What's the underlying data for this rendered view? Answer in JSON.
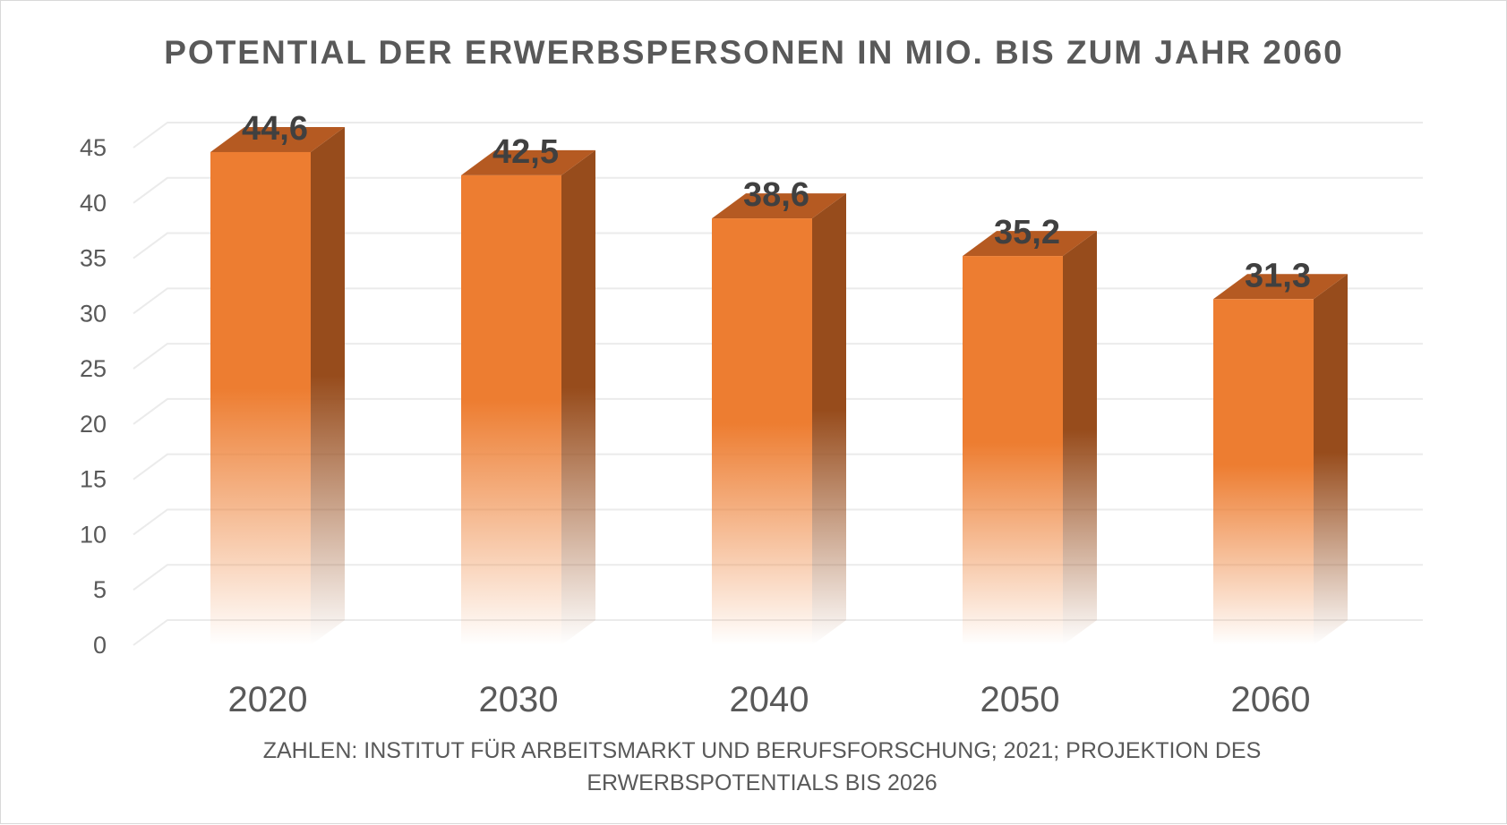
{
  "chart_data": {
    "type": "bar",
    "title": "POTENTIAL DER ERWERBSPERSONEN IN MIO. BIS ZUM JAHR 2060",
    "categories": [
      "2020",
      "2030",
      "2040",
      "2050",
      "2060"
    ],
    "values": [
      44.6,
      42.5,
      38.6,
      35.2,
      31.3
    ],
    "value_labels": [
      "44,6",
      "42,5",
      "38,6",
      "35,2",
      "31,3"
    ],
    "yticks": [
      "0",
      "5",
      "10",
      "15",
      "20",
      "25",
      "30",
      "35",
      "40",
      "45"
    ],
    "ylim": [
      0,
      45
    ],
    "grid": true,
    "style": "3d-column",
    "colors": {
      "bar_front": "#ed7d31",
      "bar_side": "#974c1c",
      "bar_top": "#b55a22"
    },
    "source_lines": [
      "ZAHLEN: INSTITUT FÜR ARBEITSMARKT UND BERUFSFORSCHUNG; 2021; PROJEKTION DES",
      "ERWERBSPOTENTIALS BIS 2026"
    ]
  }
}
